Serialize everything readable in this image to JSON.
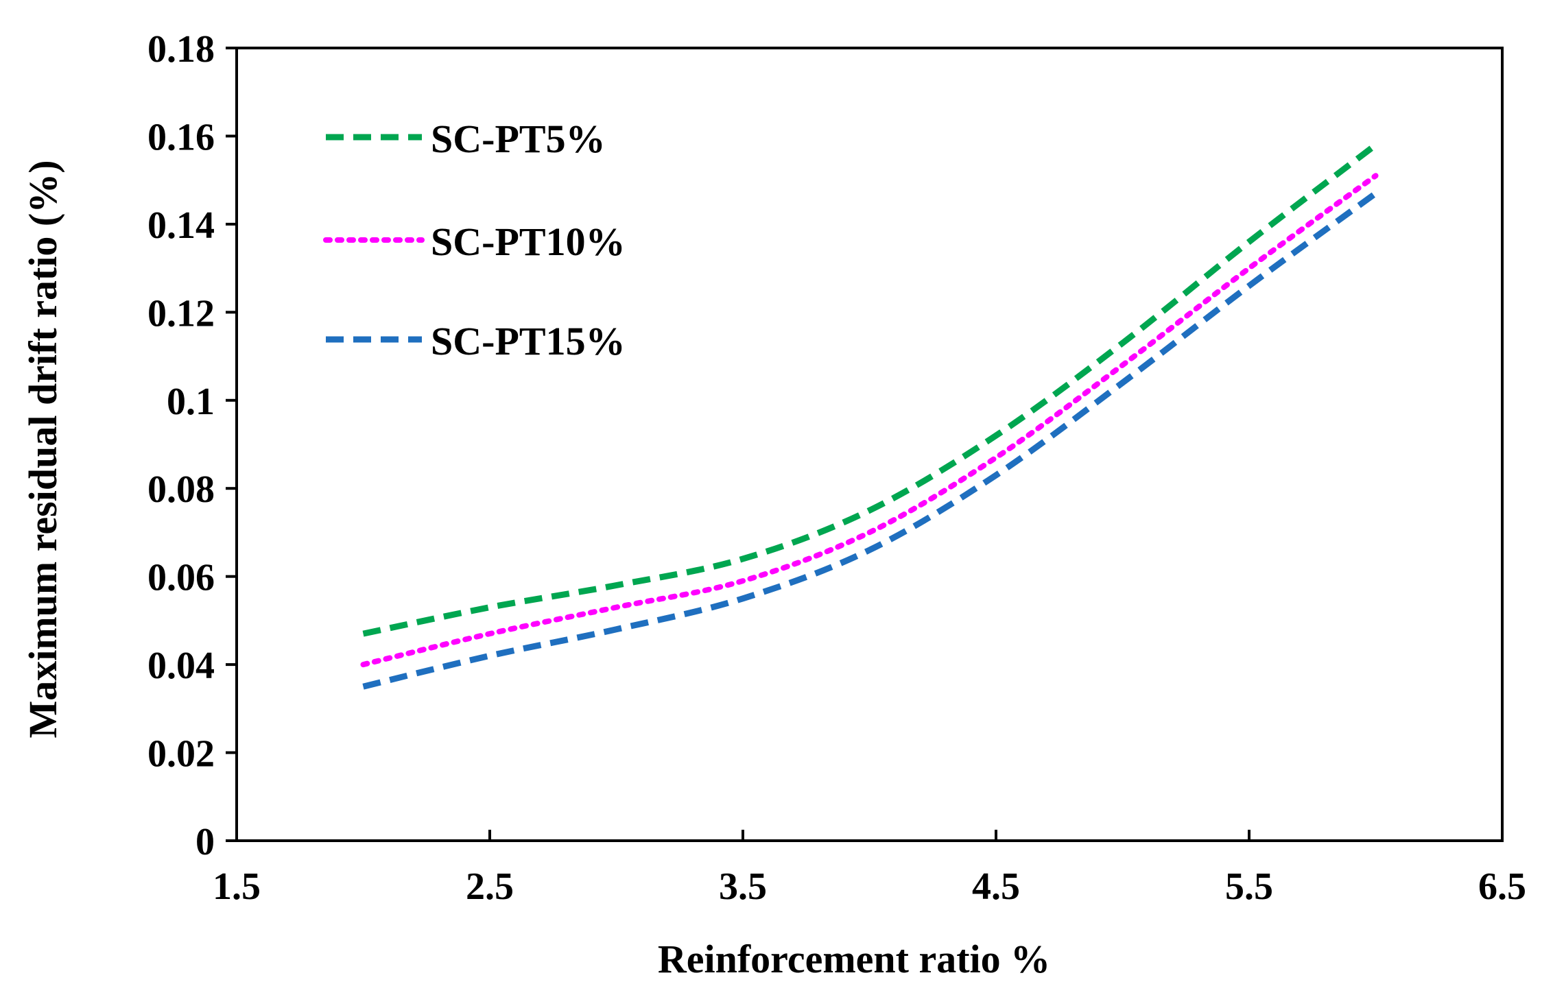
{
  "chart_data": {
    "type": "line",
    "title": "",
    "xlabel": "Reinforcement ratio %",
    "ylabel": "Maximum residual drift ratio (%)",
    "xlim": [
      1.5,
      6.5
    ],
    "ylim": [
      0,
      0.18
    ],
    "xticks": [
      1.5,
      2.5,
      3.5,
      4.5,
      5.5,
      6.5
    ],
    "xtick_labels": [
      "1.5",
      "2.5",
      "3.5",
      "4.5",
      "5.5",
      "6.5"
    ],
    "yticks": [
      0,
      0.02,
      0.04,
      0.06,
      0.08,
      0.1,
      0.12,
      0.14,
      0.16,
      0.18
    ],
    "ytick_labels": [
      "0",
      "0.02",
      "0.04",
      "0.06",
      "0.08",
      "0.1",
      "0.12",
      "0.14",
      "0.16",
      "0.18"
    ],
    "grid": false,
    "legend_position": "top-left",
    "series": [
      {
        "name": "SC-PT5%",
        "color": "#00a650",
        "dash": "dashed",
        "x": [
          2.0,
          2.5,
          3.0,
          3.5,
          4.0,
          4.5,
          5.0,
          5.5,
          6.0
        ],
        "y": [
          0.047,
          0.053,
          0.058,
          0.064,
          0.075,
          0.092,
          0.113,
          0.136,
          0.158
        ]
      },
      {
        "name": "SC-PT10%",
        "color": "#ff00ff",
        "dash": "dotted",
        "x": [
          2.0,
          2.5,
          3.0,
          3.5,
          4.0,
          4.5,
          5.0,
          5.5,
          6.0
        ],
        "y": [
          0.04,
          0.047,
          0.053,
          0.059,
          0.07,
          0.087,
          0.108,
          0.13,
          0.151
        ]
      },
      {
        "name": "SC-PT15%",
        "color": "#1f6fbf",
        "dash": "dashed",
        "x": [
          2.0,
          2.5,
          3.0,
          3.5,
          4.0,
          4.5,
          5.0,
          5.5,
          6.0
        ],
        "y": [
          0.035,
          0.042,
          0.048,
          0.055,
          0.066,
          0.083,
          0.104,
          0.126,
          0.147
        ]
      }
    ]
  }
}
